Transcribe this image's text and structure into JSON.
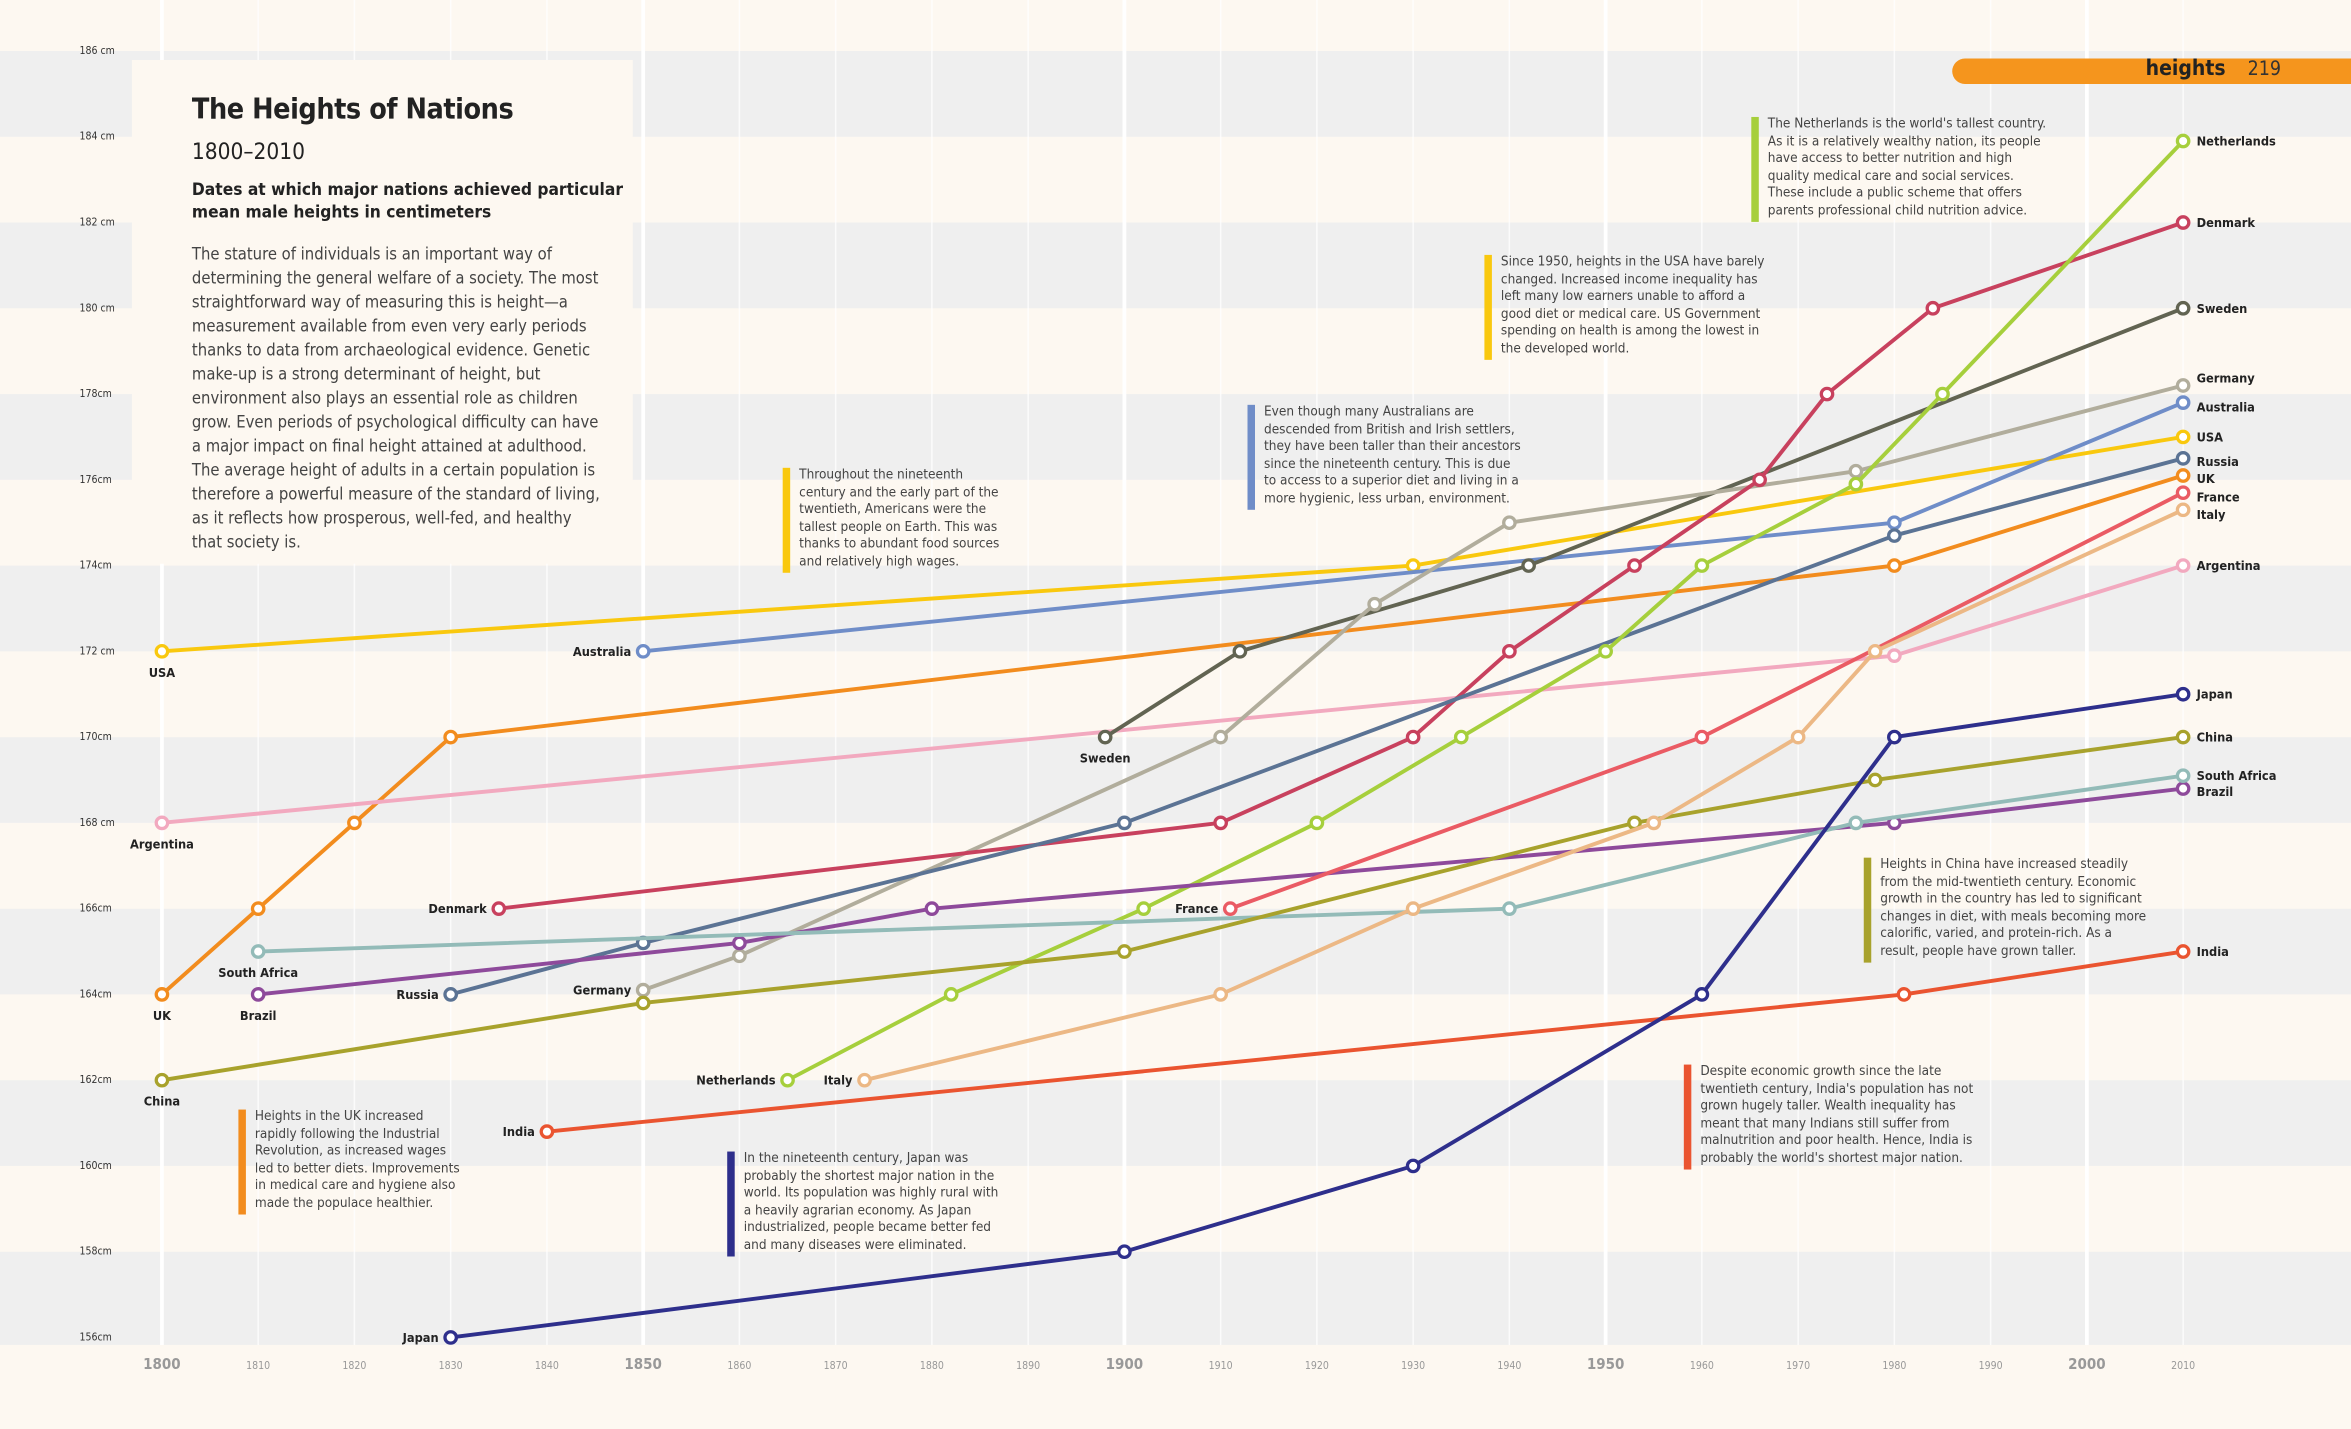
{
  "header": {
    "section": "heights",
    "page_number": "219",
    "accent": "#f5951d"
  },
  "intro": {
    "title": "The Heights of Nations",
    "subtitle": "1800–2010",
    "dek": "Dates at which major nations achieved particular mean male heights in centimeters",
    "body_lines": [
      "The stature of individuals is an important way of",
      "determining the general welfare of a society. The most",
      "straightforward way of measuring this is height—a",
      "measurement available from even very early periods",
      "thanks to data from archaeological evidence. Genetic",
      "make-up is a strong determinant of height, but",
      "environment also plays an essential role as children",
      "grow. Even periods of psychological difficulty can have",
      "a major impact on final height attained at adulthood.",
      "The average height of adults in a certain population is",
      "therefore a powerful measure of the standard of living,",
      "as it reflects how prosperous, well-fed, and healthy",
      "that society is."
    ]
  },
  "annotations": [
    {
      "color": "#f28c1e",
      "lines": [
        "Heights in the UK increased",
        "rapidly following the Industrial",
        "Revolution, as increased wages",
        "led to better diets. Improvements",
        "in medical care and hygiene also",
        "made the populace healthier."
      ]
    },
    {
      "color": "#2e2f8c",
      "lines": [
        "In the nineteenth century, Japan was",
        "probably the shortest major nation in the",
        "world. Its population was highly rural with",
        "a heavily agrarian economy. As Japan",
        "industrialized, people became better fed",
        "and many diseases were eliminated."
      ]
    },
    {
      "color": "#f9c80e",
      "lines": [
        "Throughout the nineteenth",
        "century and the early part of the",
        "twentieth, Americans were the",
        "tallest people on Earth. This was",
        "thanks to abundant food sources",
        "and relatively high wages."
      ]
    },
    {
      "color": "#6f8dc8",
      "lines": [
        "Even though many Australians are",
        "descended from British and Irish settlers,",
        "they have been taller than their ancestors",
        "since the nineteenth century. This is due",
        "to access to a superior diet and living in a",
        "more hygienic, less urban, environment."
      ]
    },
    {
      "color": "#f9c80e",
      "lines": [
        "Since 1950, heights in the USA have barely",
        "changed. Increased income inequality has",
        "left many low earners unable to afford a",
        "good diet or medical care. US Government",
        "spending on health is among the lowest in",
        "the developed world."
      ]
    },
    {
      "color": "#a6cf3c",
      "lines": [
        "The Netherlands is the world's tallest country.",
        "As it is a relatively wealthy nation, its people",
        "have access to better nutrition and high",
        "quality medical care and social services.",
        "These include a public scheme that offers",
        "parents professional child nutrition advice."
      ]
    },
    {
      "color": "#a8a22c",
      "lines": [
        "Heights in China have increased steadily",
        "from the mid-twentieth century. Economic",
        "growth in the country has led to significant",
        "changes in diet, with meals becoming more",
        "calorific, varied, and protein-rich. As a",
        "result, people have grown taller."
      ]
    },
    {
      "color": "#ea5430",
      "lines": [
        "Despite economic growth since the late",
        "twentieth century, India's population has not",
        "grown hugely taller. Wealth inequality has",
        "meant that many Indians still suffer from",
        "malnutrition and poor health. Hence, India is",
        "probably the world's shortest major nation."
      ]
    }
  ],
  "chart_data": {
    "type": "line",
    "title": "The Heights of Nations",
    "subtitle": "1800–2010",
    "xlim": [
      1800,
      2010
    ],
    "ylim": [
      156,
      186
    ],
    "y_unit": "cm",
    "grid": true,
    "x_ticks": [
      "1800",
      "1810",
      "1820",
      "1830",
      "1840",
      "1850",
      "1860",
      "1870",
      "1880",
      "1890",
      "1900",
      "1910",
      "1920",
      "1930",
      "1940",
      "1950",
      "1960",
      "1970",
      "1980",
      "1990",
      "2000",
      "2010"
    ],
    "x_major_ticks": [
      "1800",
      "1850",
      "1900",
      "1950",
      "2000"
    ],
    "y_ticks": [
      {
        "v": 186,
        "label": "186 cm"
      },
      {
        "v": 184,
        "label": "184 cm"
      },
      {
        "v": 182,
        "label": "182 cm"
      },
      {
        "v": 180,
        "label": "180 cm"
      },
      {
        "v": 178,
        "label": "178cm"
      },
      {
        "v": 176,
        "label": "176cm"
      },
      {
        "v": 174,
        "label": "174cm"
      },
      {
        "v": 172,
        "label": "172 cm"
      },
      {
        "v": 170,
        "label": "170cm"
      },
      {
        "v": 168,
        "label": "168 cm"
      },
      {
        "v": 166,
        "label": "166cm"
      },
      {
        "v": 164,
        "label": "164cm"
      },
      {
        "v": 162,
        "label": "162cm"
      },
      {
        "v": 160,
        "label": "160cm"
      },
      {
        "v": 158,
        "label": "158cm"
      },
      {
        "v": 156,
        "label": "156cm"
      }
    ],
    "series": [
      {
        "name": "USA",
        "color": "#f9c80e",
        "points": [
          [
            1800,
            172
          ],
          [
            1930,
            174
          ],
          [
            2010,
            177
          ]
        ]
      },
      {
        "name": "Australia",
        "color": "#6f8dc8",
        "points": [
          [
            1850,
            172
          ],
          [
            1980,
            175
          ],
          [
            2010,
            177.8
          ]
        ]
      },
      {
        "name": "UK",
        "color": "#f28c1e",
        "points": [
          [
            1800,
            164
          ],
          [
            1810,
            166
          ],
          [
            1820,
            168
          ],
          [
            1830,
            170
          ],
          [
            1980,
            174
          ],
          [
            2010,
            176.1
          ]
        ]
      },
      {
        "name": "Argentina",
        "color": "#f2a9bf",
        "points": [
          [
            1800,
            168
          ],
          [
            1980,
            171.9
          ],
          [
            2010,
            174
          ]
        ]
      },
      {
        "name": "Sweden",
        "color": "#626452",
        "points": [
          [
            1898,
            170
          ],
          [
            1912,
            172
          ],
          [
            1942,
            174
          ],
          [
            2010,
            180
          ]
        ]
      },
      {
        "name": "Germany",
        "color": "#b1ad9c",
        "points": [
          [
            1850,
            164.1
          ],
          [
            1860,
            164.9
          ],
          [
            1910,
            170
          ],
          [
            1926,
            173.1
          ],
          [
            1940,
            175
          ],
          [
            1976,
            176.2
          ],
          [
            2010,
            178.2
          ]
        ]
      },
      {
        "name": "Denmark",
        "color": "#c8415e",
        "points": [
          [
            1835,
            166
          ],
          [
            1910,
            168
          ],
          [
            1930,
            170
          ],
          [
            1940,
            172
          ],
          [
            1953,
            174
          ],
          [
            1966,
            176
          ],
          [
            1973,
            178
          ],
          [
            1984,
            180
          ],
          [
            2010,
            182
          ]
        ]
      },
      {
        "name": "Russia",
        "color": "#5b7394",
        "points": [
          [
            1830,
            164
          ],
          [
            1850,
            165.2
          ],
          [
            1900,
            168
          ],
          [
            1980,
            174.7
          ],
          [
            2010,
            176.5
          ]
        ]
      },
      {
        "name": "Netherlands",
        "color": "#a6cf3c",
        "points": [
          [
            1865,
            162
          ],
          [
            1882,
            164
          ],
          [
            1902,
            166
          ],
          [
            1920,
            168
          ],
          [
            1935,
            170
          ],
          [
            1950,
            172
          ],
          [
            1960,
            174
          ],
          [
            1976,
            175.9
          ],
          [
            1985,
            178
          ],
          [
            2010,
            183.9
          ]
        ]
      },
      {
        "name": "Brazil",
        "color": "#8e4a9b",
        "points": [
          [
            1810,
            164
          ],
          [
            1860,
            165.2
          ],
          [
            1880,
            166
          ],
          [
            1980,
            168
          ],
          [
            2010,
            168.8
          ]
        ]
      },
      {
        "name": "South Africa",
        "color": "#93bbb8",
        "points": [
          [
            1810,
            165
          ],
          [
            1940,
            166
          ],
          [
            1976,
            168
          ],
          [
            2010,
            169.1
          ]
        ]
      },
      {
        "name": "China",
        "color": "#a8a22c",
        "points": [
          [
            1800,
            162
          ],
          [
            1850,
            163.8
          ],
          [
            1900,
            165
          ],
          [
            1953,
            168
          ],
          [
            1978,
            169
          ],
          [
            2010,
            170
          ]
        ]
      },
      {
        "name": "France",
        "color": "#ea5b64",
        "points": [
          [
            1911,
            166
          ],
          [
            1960,
            170
          ],
          [
            2010,
            175.7
          ]
        ]
      },
      {
        "name": "Italy",
        "color": "#ecb885",
        "points": [
          [
            1873,
            162
          ],
          [
            1910,
            164
          ],
          [
            1930,
            166
          ],
          [
            1955,
            168
          ],
          [
            1970,
            170
          ],
          [
            1978,
            172
          ],
          [
            2010,
            175.3
          ]
        ]
      },
      {
        "name": "India",
        "color": "#ea5430",
        "points": [
          [
            1840,
            160.8
          ],
          [
            1981,
            164
          ],
          [
            2010,
            165
          ]
        ]
      },
      {
        "name": "Japan",
        "color": "#2e2f8c",
        "points": [
          [
            1830,
            156
          ],
          [
            1900,
            158
          ],
          [
            1930,
            160
          ],
          [
            1960,
            164
          ],
          [
            1980,
            170
          ],
          [
            2010,
            171
          ]
        ]
      }
    ]
  }
}
